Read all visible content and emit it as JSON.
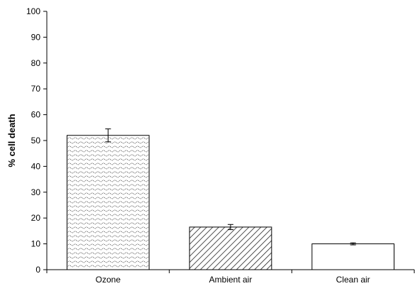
{
  "chart_data": {
    "type": "bar",
    "title": "",
    "xlabel": "",
    "ylabel": "% cell death",
    "ylim": [
      0,
      100
    ],
    "yticks": [
      0,
      10,
      20,
      30,
      40,
      50,
      60,
      70,
      80,
      90,
      100
    ],
    "categories": [
      "Ozone",
      "Ambient air",
      "Clean air"
    ],
    "values": [
      52,
      16.5,
      10
    ],
    "error": [
      2.5,
      1.0,
      0.4
    ],
    "bar_fills": [
      "wavy-dotted-pattern",
      "diagonal-hatch",
      "white"
    ],
    "grid": false,
    "legend": "none"
  }
}
